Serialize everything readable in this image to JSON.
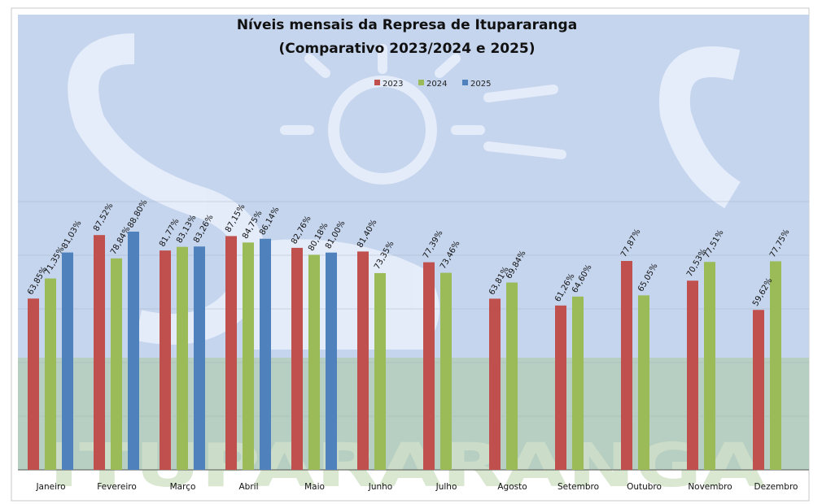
{
  "chart_data": {
    "type": "bar",
    "title": "Níveis mensais da Represa de Itupararanga",
    "subtitle": "(Comparativo 2023/2024 e 2025)",
    "categories": [
      "Janeiro",
      "Fevereiro",
      "Março",
      "Abril",
      "Maio",
      "Junho",
      "Julho",
      "Agosto",
      "Setembro",
      "Outubro",
      "Novembro",
      "Dezembro"
    ],
    "series": [
      {
        "name": "2023",
        "color": "#c0504d",
        "values": [
          63.85,
          87.52,
          81.77,
          87.15,
          82.76,
          81.4,
          77.39,
          63.81,
          61.26,
          77.87,
          70.53,
          59.62
        ],
        "labels": [
          "63,85%",
          "87,52%",
          "81,77%",
          "87,15%",
          "82,76%",
          "81,40%",
          "77,39%",
          "63,81%",
          "61,26%",
          "77,87%",
          "70,53%",
          "59,62%"
        ]
      },
      {
        "name": "2024",
        "color": "#9bbb59",
        "values": [
          71.35,
          78.84,
          83.13,
          84.75,
          80.18,
          73.35,
          73.46,
          69.84,
          64.6,
          65.05,
          77.51,
          77.75
        ],
        "labels": [
          "71,35%",
          "78,84%",
          "83,13%",
          "84,75%",
          "80,18%",
          "73,35%",
          "73,46%",
          "69,84%",
          "64,60%",
          "65,05%",
          "77,51%",
          "77,75%"
        ]
      },
      {
        "name": "2025",
        "color": "#4f81bd",
        "values": [
          81.03,
          88.8,
          83.26,
          86.14,
          81.0,
          null,
          null,
          null,
          null,
          null,
          null,
          null
        ],
        "labels": [
          "81,03%",
          "88,80%",
          "83,26%",
          "86,14%",
          "81,00%",
          null,
          null,
          null,
          null,
          null,
          null,
          null
        ]
      }
    ],
    "ylim": [
      0,
      100
    ],
    "grid": true,
    "legend": "top-center",
    "background_watermark": "ITUPARARANGA"
  }
}
